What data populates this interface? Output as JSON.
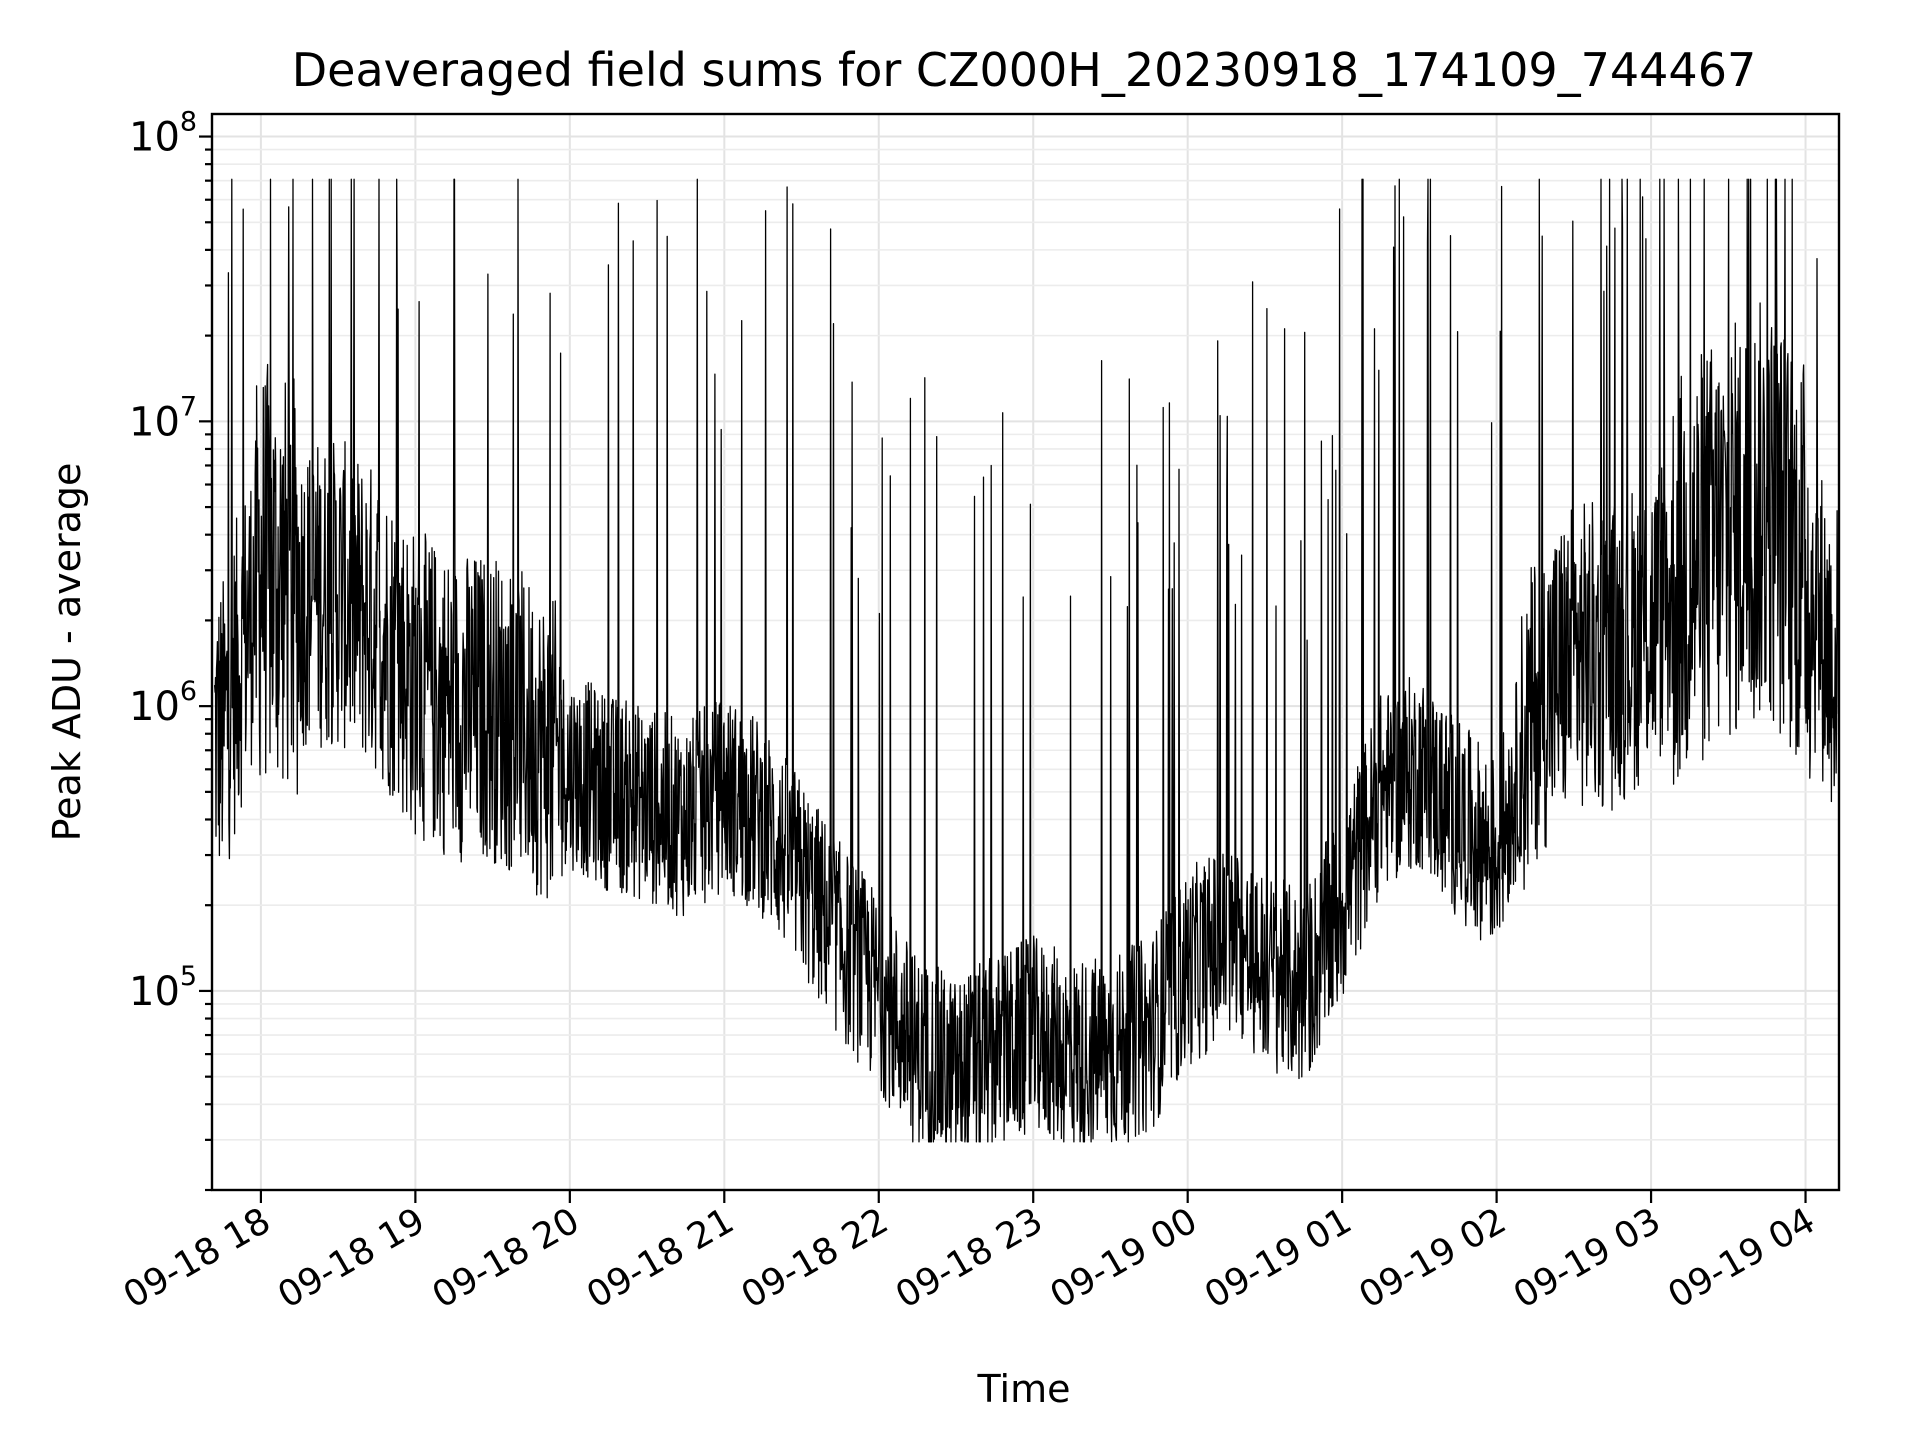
{
  "chart_data": {
    "type": "line",
    "title": "Deaveraged field sums for CZ000H_20230918_174109_744467",
    "xlabel": "Time",
    "ylabel": "Peak ADU - average",
    "yscale": "log",
    "ylim": [
      20000,
      120000000
    ],
    "xlim": [
      "2023-09-18 17:41",
      "2023-09-19 04:13"
    ],
    "grid": true,
    "legend": "none",
    "line_color": "#000000",
    "x_ticks": [
      {
        "value": "2023-09-18 18:00",
        "label": "09-18 18"
      },
      {
        "value": "2023-09-18 19:00",
        "label": "09-18 19"
      },
      {
        "value": "2023-09-18 20:00",
        "label": "09-18 20"
      },
      {
        "value": "2023-09-18 21:00",
        "label": "09-18 21"
      },
      {
        "value": "2023-09-18 22:00",
        "label": "09-18 22"
      },
      {
        "value": "2023-09-18 23:00",
        "label": "09-18 23"
      },
      {
        "value": "2023-09-19 00:00",
        "label": "09-19 00"
      },
      {
        "value": "2023-09-19 01:00",
        "label": "09-19 01"
      },
      {
        "value": "2023-09-19 02:00",
        "label": "09-19 02"
      },
      {
        "value": "2023-09-19 03:00",
        "label": "09-19 03"
      },
      {
        "value": "2023-09-19 04:00",
        "label": "09-19 04"
      }
    ],
    "y_ticks": [
      {
        "value": 100000,
        "base": "10",
        "exp": "5"
      },
      {
        "value": 1000000,
        "base": "10",
        "exp": "6"
      },
      {
        "value": 10000000,
        "base": "10",
        "exp": "7"
      },
      {
        "value": 100000000,
        "base": "10",
        "exp": "8"
      }
    ],
    "series": [
      {
        "x": [
          "2023-09-18 17:45",
          "2023-09-18 18:00",
          "2023-09-18 18:15",
          "2023-09-18 18:30",
          "2023-09-18 18:45",
          "2023-09-18 19:00",
          "2023-09-18 19:15",
          "2023-09-18 19:30",
          "2023-09-18 19:45",
          "2023-09-18 20:00",
          "2023-09-18 20:15",
          "2023-09-18 20:30",
          "2023-09-18 20:45",
          "2023-09-18 21:00",
          "2023-09-18 21:15",
          "2023-09-18 21:30",
          "2023-09-18 21:45",
          "2023-09-18 22:00",
          "2023-09-18 22:15",
          "2023-09-18 22:30",
          "2023-09-18 22:45",
          "2023-09-18 23:00",
          "2023-09-18 23:15",
          "2023-09-18 23:30",
          "2023-09-18 23:45",
          "2023-09-19 00:00",
          "2023-09-19 00:15",
          "2023-09-19 00:30",
          "2023-09-19 00:45",
          "2023-09-19 01:00",
          "2023-09-19 01:15",
          "2023-09-19 01:30",
          "2023-09-19 01:45",
          "2023-09-19 02:00",
          "2023-09-19 02:15",
          "2023-09-19 02:30",
          "2023-09-19 02:45",
          "2023-09-19 03:00",
          "2023-09-19 03:15",
          "2023-09-19 03:30",
          "2023-09-19 03:45",
          "2023-09-19 04:00",
          "2023-09-19 04:10"
        ],
        "values": [
          800000,
          3000000,
          2500000,
          2500000,
          2000000,
          1200000,
          1000000,
          1000000,
          800000,
          600000,
          500000,
          450000,
          400000,
          500000,
          400000,
          250000,
          150000,
          100000,
          60000,
          50000,
          60000,
          70000,
          60000,
          60000,
          70000,
          120000,
          150000,
          120000,
          100000,
          200000,
          500000,
          600000,
          400000,
          300000,
          1000000,
          1500000,
          1500000,
          2000000,
          3000000,
          4000000,
          5000000,
          3000000,
          1500000
        ]
      }
    ]
  }
}
